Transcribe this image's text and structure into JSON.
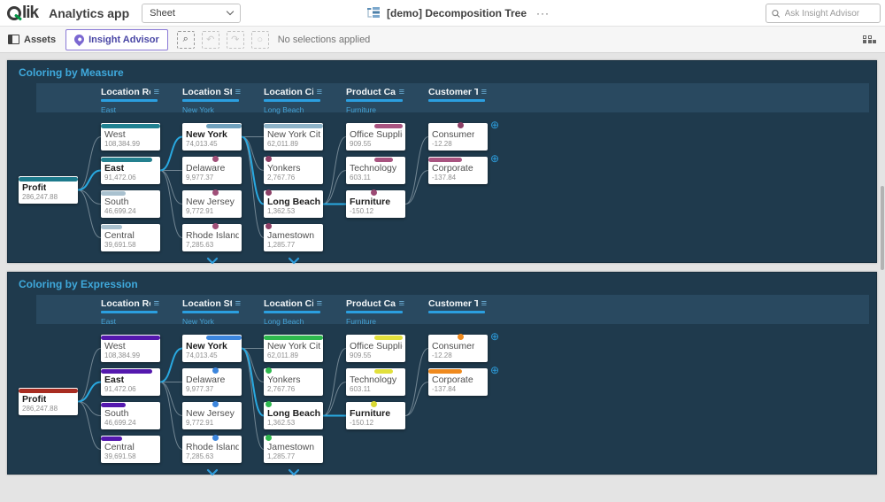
{
  "header": {
    "logo_text": "lik",
    "app_title": "Analytics app",
    "sheet_selector": "Sheet",
    "doc_title": "[demo] Decomposition Tree",
    "more_label": "···",
    "search_placeholder": "Ask Insight Advisor"
  },
  "toolbar": {
    "assets_label": "Assets",
    "insight_advisor_label": "Insight Advisor",
    "smart_search_icon": "⌕",
    "undo_icon": "↶",
    "redo_icon": "↷",
    "clear_icon": "○",
    "no_selections_label": "No selections applied"
  },
  "tree": {
    "columns": [
      {
        "label": "Location Region",
        "breadcrumb": "East"
      },
      {
        "label": "Location State",
        "breadcrumb": "New York"
      },
      {
        "label": "Location City",
        "breadcrumb": "Long Beach"
      },
      {
        "label": "Product Category",
        "breadcrumb": "Furniture"
      },
      {
        "label": "Customer Type",
        "breadcrumb": ""
      }
    ],
    "root": {
      "label": "Profit",
      "value": "286,247.88",
      "bold": true,
      "bar": [
        0,
        100
      ]
    },
    "levels": [
      [
        {
          "label": "West",
          "value": "108,384.99",
          "row": 0,
          "bar": [
            0,
            100
          ]
        },
        {
          "label": "East",
          "value": "91,472.06",
          "row": 1,
          "bold": true,
          "bar": [
            0,
            87
          ]
        },
        {
          "label": "South",
          "value": "46,699.24",
          "row": 2,
          "bar": [
            0,
            42
          ]
        },
        {
          "label": "Central",
          "value": "39,691.58",
          "row": 3,
          "bar": [
            0,
            36
          ]
        }
      ],
      [
        {
          "label": "New York",
          "value": "74,013.45",
          "row": 0,
          "bold": true,
          "bar": [
            40,
            60
          ]
        },
        {
          "label": "Delaware",
          "value": "9,977.37",
          "row": 1,
          "dot": 50
        },
        {
          "label": "New Jersey",
          "value": "9,772.91",
          "row": 2,
          "dot": 50
        },
        {
          "label": "Rhode Island",
          "value": "7,285.63",
          "row": 3,
          "dot": 50
        }
      ],
      [
        {
          "label": "New York City",
          "value": "62,011.89",
          "row": 0,
          "bar": [
            0,
            100
          ]
        },
        {
          "label": "Yonkers",
          "value": "2,767.76",
          "row": 1,
          "dot": 3
        },
        {
          "label": "Long Beach",
          "value": "1,362.53",
          "row": 2,
          "bold": true,
          "dot": 3
        },
        {
          "label": "Jamestown",
          "value": "1,285.77",
          "row": 3,
          "dot": 3
        }
      ],
      [
        {
          "label": "Office Supplies",
          "value": "909.55",
          "row": 0,
          "bar": [
            48,
            47
          ]
        },
        {
          "label": "Technology",
          "value": "603.11",
          "row": 1,
          "bar": [
            48,
            31
          ]
        },
        {
          "label": "Furniture",
          "value": "-150.12",
          "row": 2,
          "bold": true,
          "dot": 42
        }
      ],
      [
        {
          "label": "Consumer",
          "value": "-12.28",
          "row": 0,
          "dot": 49,
          "plus": true
        },
        {
          "label": "Corporate",
          "value": "-137.84",
          "row": 1,
          "bar": [
            0,
            56
          ],
          "plus": true
        }
      ]
    ],
    "links": [
      {
        "f": "root",
        "t": [
          0,
          0
        ]
      },
      {
        "f": "root",
        "t": [
          0,
          1
        ],
        "hl": true
      },
      {
        "f": "root",
        "t": [
          0,
          2
        ]
      },
      {
        "f": "root",
        "t": [
          0,
          3
        ]
      },
      {
        "f": [
          0,
          1
        ],
        "t": [
          1,
          0
        ],
        "hl": true
      },
      {
        "f": [
          0,
          1
        ],
        "t": [
          1,
          1
        ]
      },
      {
        "f": [
          0,
          1
        ],
        "t": [
          1,
          2
        ]
      },
      {
        "f": [
          0,
          1
        ],
        "t": [
          1,
          3
        ]
      },
      {
        "f": [
          1,
          0
        ],
        "t": [
          2,
          0
        ]
      },
      {
        "f": [
          1,
          0
        ],
        "t": [
          2,
          1
        ]
      },
      {
        "f": [
          1,
          0
        ],
        "t": [
          2,
          2
        ],
        "hl": true
      },
      {
        "f": [
          1,
          0
        ],
        "t": [
          2,
          3
        ]
      },
      {
        "f": [
          2,
          2
        ],
        "t": [
          3,
          0
        ]
      },
      {
        "f": [
          2,
          2
        ],
        "t": [
          3,
          1
        ]
      },
      {
        "f": [
          2,
          2
        ],
        "t": [
          3,
          2
        ],
        "hl": true
      },
      {
        "f": [
          3,
          2
        ],
        "t": [
          4,
          0
        ]
      },
      {
        "f": [
          3,
          2
        ],
        "t": [
          4,
          1
        ]
      }
    ],
    "scroll_chevron_columns": [
      1,
      2
    ]
  },
  "panels": [
    {
      "title": "Coloring by Measure",
      "colors": {
        "root": "#1d7a8c",
        "levels": [
          [
            "#1f8191",
            "#24808f",
            "#a9c1cf",
            "#a9c1cf"
          ],
          [
            "#6fa1bd",
            "#a04f78",
            "#a04f78",
            "#a04f78"
          ],
          [
            "#8db3c8",
            "#8c3f66",
            "#8c3f66",
            "#8c3f66"
          ],
          [
            "#a85480",
            "#a85480",
            "#9c4a74"
          ],
          [
            "#8c3f66",
            "#a85480"
          ]
        ]
      }
    },
    {
      "title": "Coloring by Expression",
      "colors": {
        "root": "#a82c21",
        "levels": [
          [
            "#5418ae",
            "#5418ae",
            "#5418ae",
            "#5418ae"
          ],
          [
            "#3c86dd",
            "#3c86dd",
            "#3c86dd",
            "#3c86dd"
          ],
          [
            "#2eb84e",
            "#2eb84e",
            "#2eb84e",
            "#2eb84e"
          ],
          [
            "#e2e03c",
            "#e2e03c",
            "#d9d832"
          ],
          [
            "#ef8a1e",
            "#ef8a1e"
          ]
        ]
      }
    }
  ],
  "visual": {
    "highlight_color": "#29a9e1",
    "link_color": "#8fa0ab",
    "panel_bg": "#1f3a4d",
    "band_bg": "#294960",
    "accent_blue": "#2d9cdb"
  }
}
